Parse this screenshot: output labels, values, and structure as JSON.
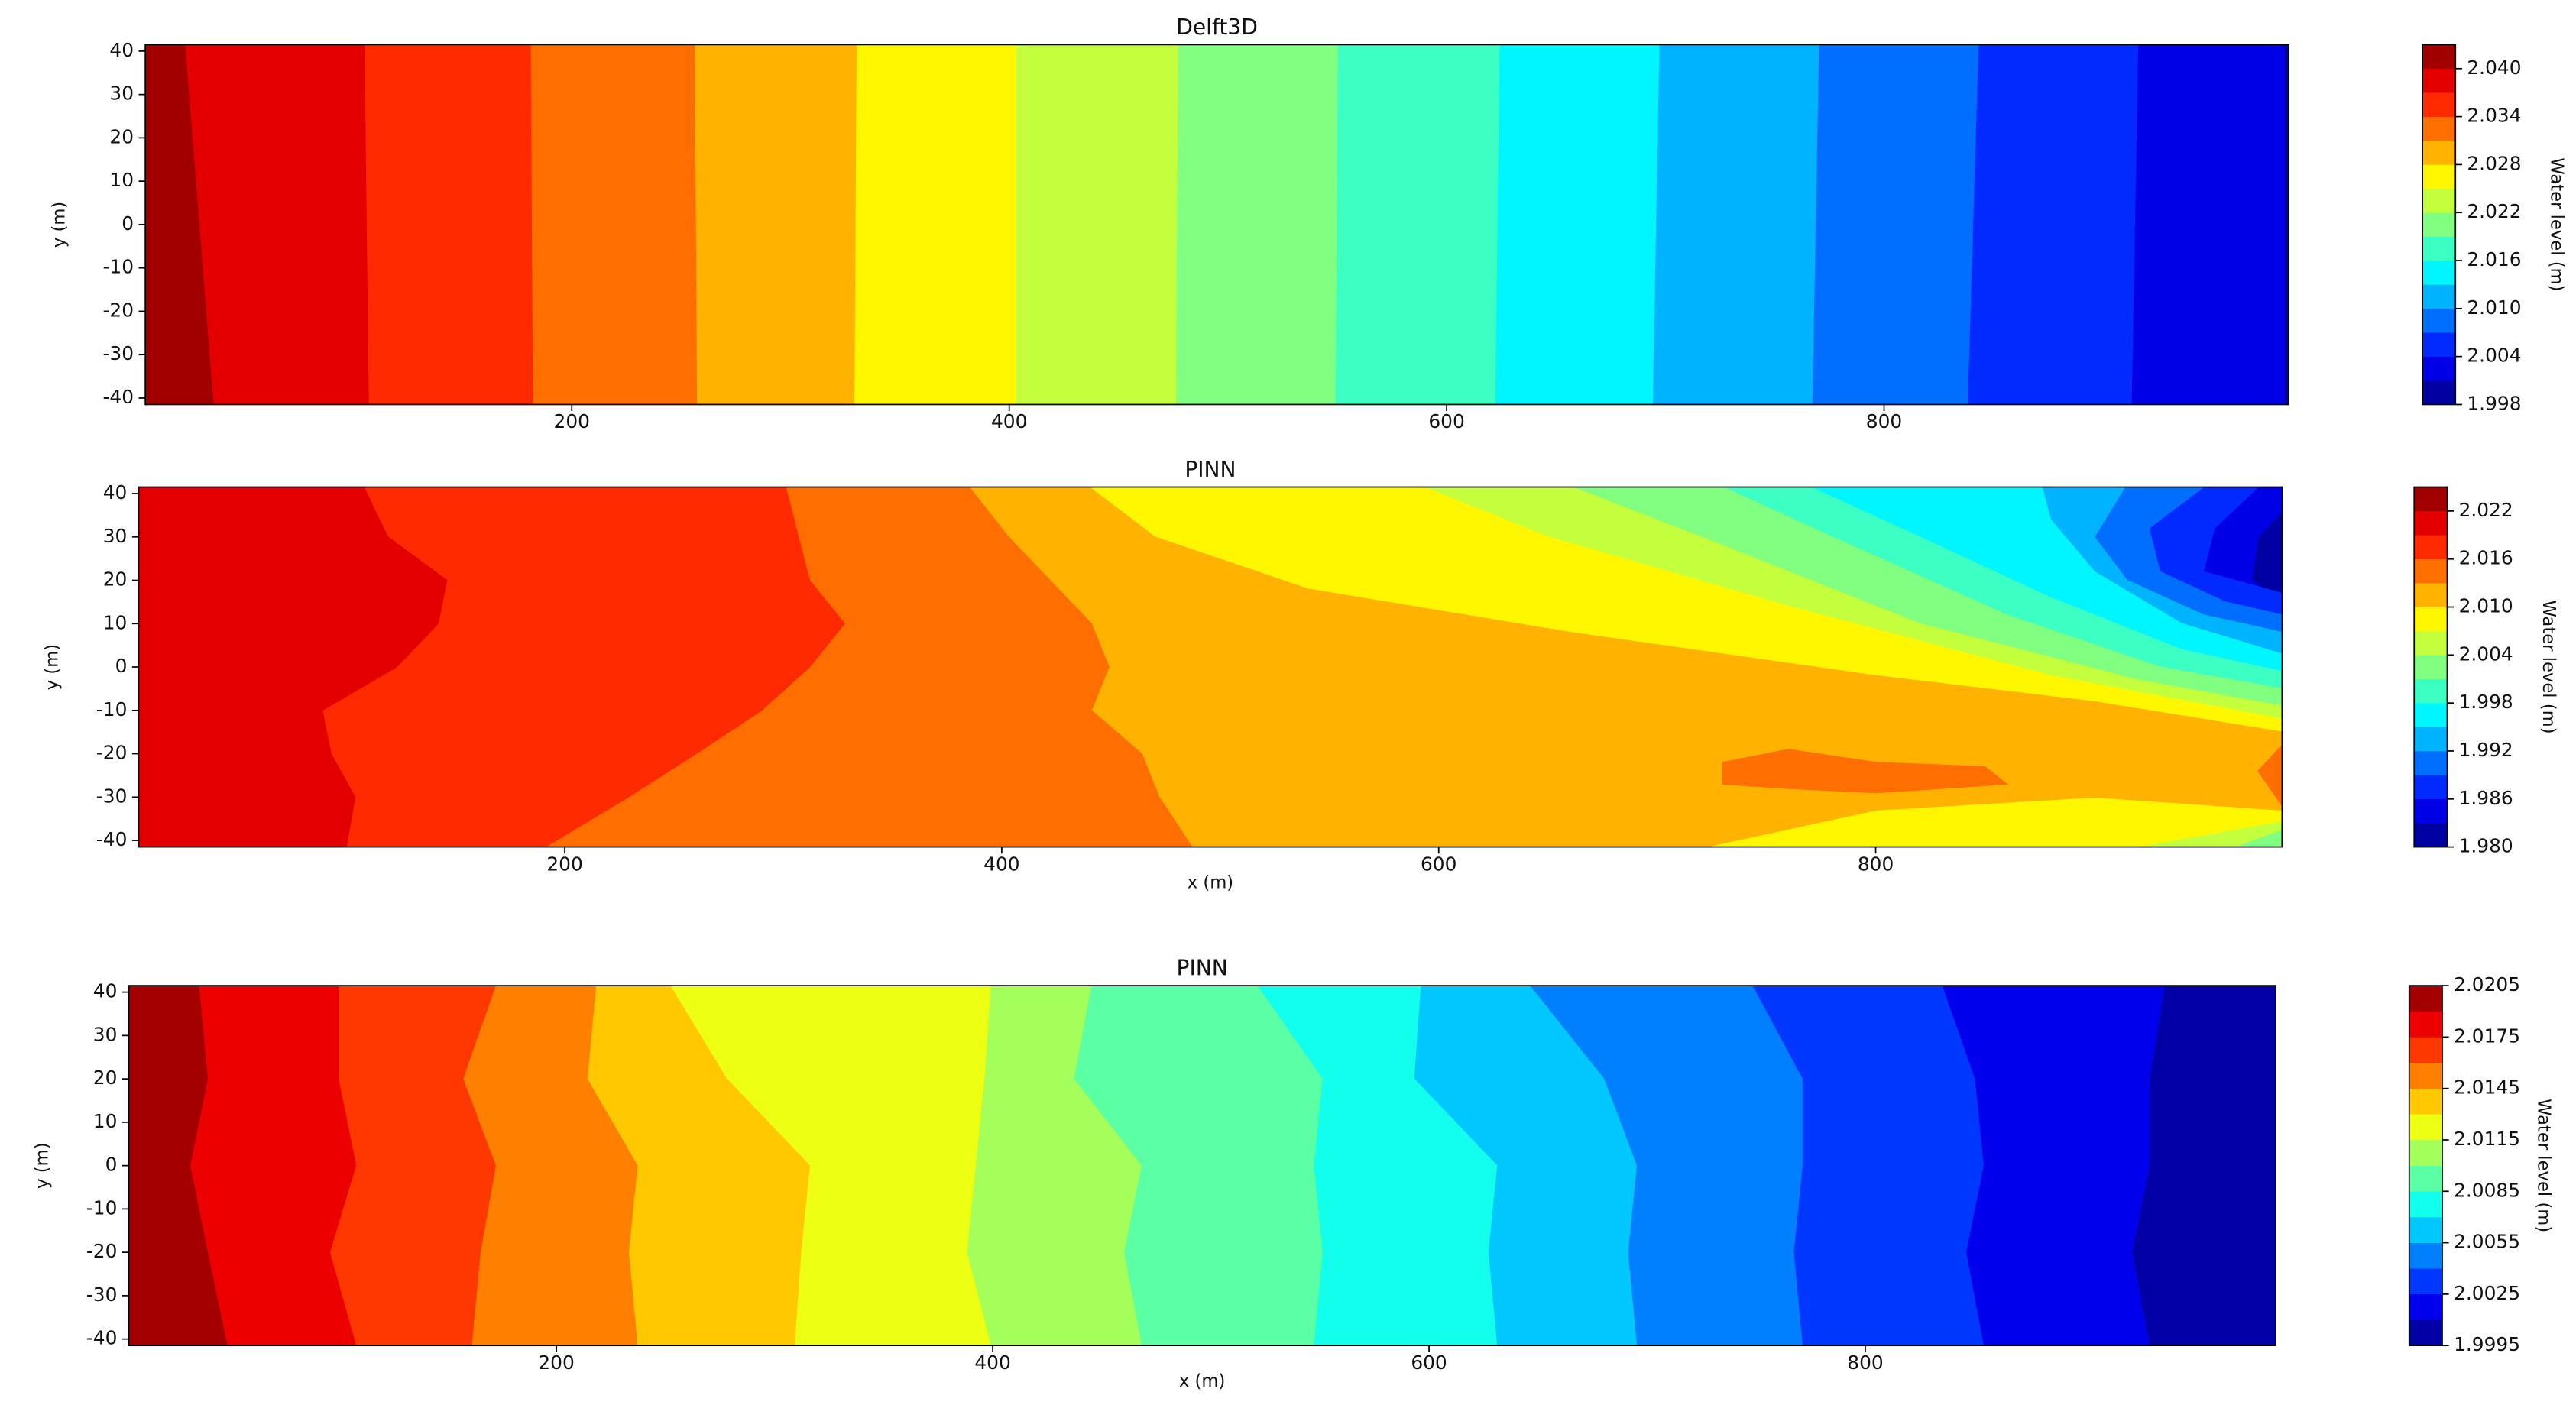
{
  "chart_data": [
    {
      "type": "contour",
      "title": "Delft3D",
      "ylabel": "y (m)",
      "colorbar_label": "Water level (m)",
      "colormap": "jet",
      "xlim": [
        5,
        985
      ],
      "ylim": [
        -41.5,
        41.5
      ],
      "xticks": [
        200,
        400,
        600,
        800
      ],
      "yticks": [
        -40,
        -30,
        -20,
        -10,
        0,
        10,
        20,
        30,
        40
      ],
      "levels": [
        1.998,
        2.001,
        2.004,
        2.007,
        2.01,
        2.013,
        2.016,
        2.019,
        2.022,
        2.025,
        2.028,
        2.031,
        2.034,
        2.037,
        2.04,
        2.043
      ],
      "cbar_ticks": [
        1.998,
        2.004,
        {
          "value": 2.01,
          "label": "2.010"
        },
        2.016,
        2.022,
        2.028,
        2.034,
        {
          "value": 2.04,
          "label": "2.040"
        }
      ],
      "regions": [
        {
          "level": 1.998,
          "x": [
            5,
            985,
            985,
            5
          ],
          "y": [
            41.5,
            41.5,
            -41.5,
            -41.5
          ]
        },
        {
          "level": 2.001,
          "x": [
            5,
            983,
            983,
            5
          ],
          "y": [
            41.5,
            41.5,
            -41.5,
            -41.5
          ]
        },
        {
          "level": 2.004,
          "x": [
            5,
            916,
            913,
            5
          ],
          "y": [
            41.5,
            41.5,
            -41.5,
            -41.5
          ]
        },
        {
          "level": 2.007,
          "x": [
            5,
            843,
            838,
            5
          ],
          "y": [
            41.5,
            41.5,
            -41.5,
            -41.5
          ]
        },
        {
          "level": 2.01,
          "x": [
            5,
            770,
            767,
            5
          ],
          "y": [
            41.5,
            41.5,
            -41.5,
            -41.5
          ]
        },
        {
          "level": 2.013,
          "x": [
            5,
            697,
            694,
            5
          ],
          "y": [
            41.5,
            41.5,
            -41.5,
            -41.5
          ]
        },
        {
          "level": 2.016,
          "x": [
            5,
            624,
            622,
            5
          ],
          "y": [
            41.5,
            41.5,
            -41.5,
            -41.5
          ]
        },
        {
          "level": 2.019,
          "x": [
            5,
            550,
            549,
            5
          ],
          "y": [
            41.5,
            41.5,
            -41.5,
            -41.5
          ]
        },
        {
          "level": 2.022,
          "x": [
            5,
            477,
            476,
            5
          ],
          "y": [
            41.5,
            41.5,
            -41.5,
            -41.5
          ]
        },
        {
          "level": 2.025,
          "x": [
            5,
            403,
            403,
            5
          ],
          "y": [
            41.5,
            41.5,
            -41.5,
            -41.5
          ]
        },
        {
          "level": 2.028,
          "x": [
            5,
            330,
            329,
            5
          ],
          "y": [
            41.5,
            41.5,
            -41.5,
            -41.5
          ]
        },
        {
          "level": 2.031,
          "x": [
            5,
            256,
            257,
            5
          ],
          "y": [
            41.5,
            41.5,
            -41.5,
            -41.5
          ]
        },
        {
          "level": 2.034,
          "x": [
            5,
            181,
            182,
            5
          ],
          "y": [
            41.5,
            41.5,
            -41.5,
            -41.5
          ]
        },
        {
          "level": 2.037,
          "x": [
            5,
            105,
            107,
            5
          ],
          "y": [
            41.5,
            41.5,
            -41.5,
            -41.5
          ]
        },
        {
          "level": 2.04,
          "x": [
            5,
            23,
            36,
            5
          ],
          "y": [
            41.5,
            41.5,
            -41.5,
            -41.5
          ]
        }
      ]
    },
    {
      "type": "contour",
      "title": "PINN",
      "xlabel": "x (m)",
      "ylabel": "y (m)",
      "colorbar_label": "Water level (m)",
      "colormap": "jet",
      "xlim": [
        5,
        986
      ],
      "ylim": [
        -41.5,
        41.5
      ],
      "xticks": [
        200,
        400,
        600,
        800
      ],
      "yticks": [
        -40,
        -30,
        -20,
        -10,
        0,
        10,
        20,
        30,
        40
      ],
      "levels": [
        1.98,
        1.983,
        1.986,
        1.989,
        1.992,
        1.995,
        1.998,
        2.001,
        2.004,
        2.007,
        2.01,
        2.013,
        2.016,
        2.019,
        2.022,
        2.025
      ],
      "cbar_ticks": [
        {
          "value": 1.98,
          "label": "1.980"
        },
        1.986,
        1.992,
        1.998,
        2.004,
        {
          "value": 2.01,
          "label": "2.010"
        },
        2.016,
        2.022
      ],
      "regions": [
        {
          "level": 1.98,
          "x": [
            5,
            986,
            986,
            5
          ],
          "y": [
            41.5,
            41.5,
            -41.5,
            -41.5
          ]
        },
        {
          "level": 1.983,
          "x": [
            5,
            986,
            986,
            975,
            972,
            986,
            986,
            5
          ],
          "y": [
            41.5,
            41.5,
            36,
            30,
            20,
            15,
            -41.5,
            -41.5
          ]
        },
        {
          "level": 1.986,
          "x": [
            5,
            975,
            955,
            950,
            986,
            986,
            5
          ],
          "y": [
            41.5,
            41.5,
            32,
            22,
            17,
            -41.5,
            -41.5
          ]
        },
        {
          "level": 1.989,
          "x": [
            5,
            950,
            925,
            930,
            960,
            986,
            986,
            5
          ],
          "y": [
            41.5,
            41.5,
            32,
            22,
            15,
            12,
            -41.5,
            -41.5
          ]
        },
        {
          "level": 1.992,
          "x": [
            5,
            914,
            900,
            915,
            950,
            986,
            986,
            5
          ],
          "y": [
            41.5,
            41.5,
            30,
            20,
            12,
            8,
            -41.5,
            -41.5
          ]
        },
        {
          "level": 1.995,
          "x": [
            5,
            876,
            880,
            900,
            940,
            986,
            986,
            5
          ],
          "y": [
            41.5,
            41.5,
            34,
            22,
            10,
            3,
            -41.5,
            -41.5
          ]
        },
        {
          "level": 1.998,
          "x": [
            5,
            770,
            820,
            880,
            940,
            986,
            986,
            5
          ],
          "y": [
            41.5,
            41.5,
            30,
            16,
            4,
            -1,
            -41.5,
            -41.5
          ]
        },
        {
          "level": 2.001,
          "x": [
            5,
            730,
            780,
            860,
            930,
            986,
            986,
            5
          ],
          "y": [
            41.5,
            41.5,
            30,
            12,
            0,
            -5,
            -41.5,
            -41.5
          ]
        },
        {
          "level": 2.004,
          "x": [
            5,
            661,
            720,
            820,
            920,
            986,
            986,
            964,
            5
          ],
          "y": [
            41.5,
            41.5,
            30,
            10,
            -3,
            -9,
            -37.4,
            -41.5,
            -41.5
          ]
        },
        {
          "level": 2.007,
          "x": [
            5,
            593,
            650,
            760,
            880,
            986,
            986,
            919,
            5
          ],
          "y": [
            41.5,
            41.5,
            30,
            14,
            -2,
            -12,
            -35.5,
            -41.5,
            -41.5
          ]
        },
        {
          "level": 2.01,
          "x": [
            5,
            440,
            470,
            540,
            660,
            800,
            900,
            986,
            986,
            900,
            800,
            722,
            5
          ],
          "y": [
            41.5,
            41.5,
            30,
            18,
            8,
            -2,
            -8,
            -15,
            -33,
            -30,
            -33,
            -41.5,
            -41.5
          ]
        },
        {
          "level": 2.013,
          "x": [
            5,
            385,
            403,
            441,
            449,
            441,
            464,
            472,
            487,
            5
          ],
          "y": [
            41.5,
            41.5,
            30,
            10,
            0,
            -10,
            -20,
            -30,
            -41.5,
            -41.5
          ]
        },
        {
          "level": 2.013,
          "x": [
            730,
            760,
            800,
            850,
            860,
            800,
            760,
            730
          ],
          "y": [
            -22,
            -19,
            -22,
            -23,
            -27,
            -29,
            -28,
            -27
          ]
        },
        {
          "level": 2.013,
          "x": [
            986,
            975,
            986
          ],
          "y": [
            -18,
            -24,
            -32
          ]
        },
        {
          "level": 2.016,
          "x": [
            5,
            301,
            312,
            328,
            312,
            290,
            260,
            229,
            191,
            5
          ],
          "y": [
            41.5,
            41.5,
            20,
            10,
            0,
            -10,
            -20,
            -30,
            -41.5,
            -41.5
          ]
        },
        {
          "level": 2.019,
          "x": [
            5,
            108,
            119,
            146,
            142,
            123,
            89,
            93,
            104,
            100,
            5
          ],
          "y": [
            41.5,
            41.5,
            30,
            20,
            10,
            0,
            -10,
            -20,
            -30,
            -41.5,
            -41.5
          ]
        }
      ]
    },
    {
      "type": "contour",
      "title": "PINN",
      "xlabel": "x (m)",
      "ylabel": "y (m)",
      "colorbar_label": "Water level (m)",
      "colormap": "jet",
      "xlim": [
        4,
        988
      ],
      "ylim": [
        -41.5,
        41.5
      ],
      "xticks": [
        200,
        400,
        600,
        800
      ],
      "yticks": [
        -40,
        -30,
        -20,
        -10,
        0,
        10,
        20,
        30,
        40
      ],
      "levels": [
        1.9995,
        2.001,
        2.0025,
        2.004,
        2.0055,
        2.007,
        2.0085,
        2.01,
        2.0115,
        2.013,
        2.0145,
        2.016,
        2.0175,
        2.019,
        2.0205
      ],
      "cbar_ticks": [
        1.9995,
        2.0025,
        2.0055,
        2.0085,
        2.0115,
        2.0145,
        2.0175,
        2.0205
      ],
      "regions": [
        {
          "level": 1.9995,
          "x": [
            4,
            988,
            988,
            4
          ],
          "y": [
            41.5,
            41.5,
            -41.5,
            -41.5
          ]
        },
        {
          "level": 2.001,
          "x": [
            4,
            937,
            930,
            930,
            922,
            930,
            4
          ],
          "y": [
            41.5,
            41.5,
            20,
            0,
            -20,
            -41.5,
            -41.5
          ]
        },
        {
          "level": 2.0025,
          "x": [
            4,
            835,
            850,
            854,
            846,
            854,
            4
          ],
          "y": [
            41.5,
            41.5,
            20,
            0,
            -20,
            -41.5,
            -41.5
          ]
        },
        {
          "level": 2.004,
          "x": [
            4,
            748,
            771,
            771,
            767,
            771,
            4
          ],
          "y": [
            41.5,
            41.5,
            20,
            0,
            -20,
            -41.5,
            -41.5
          ]
        },
        {
          "level": 2.0055,
          "x": [
            4,
            646,
            680,
            695,
            691,
            695,
            4
          ],
          "y": [
            41.5,
            41.5,
            20,
            0,
            -20,
            -41.5,
            -41.5
          ]
        },
        {
          "level": 2.007,
          "x": [
            4,
            596,
            593,
            631,
            627,
            631,
            4
          ],
          "y": [
            41.5,
            41.5,
            20,
            0,
            -20,
            -41.5,
            -41.5
          ]
        },
        {
          "level": 2.0085,
          "x": [
            4,
            521,
            551,
            547,
            551,
            547,
            4
          ],
          "y": [
            41.5,
            41.5,
            20,
            0,
            -20,
            -41.5,
            -41.5
          ]
        },
        {
          "level": 2.01,
          "x": [
            4,
            445,
            437,
            468,
            460,
            468,
            4
          ],
          "y": [
            41.5,
            41.5,
            20,
            0,
            -20,
            -41.5,
            -41.5
          ]
        },
        {
          "level": 2.0115,
          "x": [
            4,
            399,
            396,
            392,
            388,
            399,
            4
          ],
          "y": [
            41.5,
            41.5,
            20,
            0,
            -20,
            -41.5,
            -41.5
          ]
        },
        {
          "level": 2.013,
          "x": [
            4,
            252,
            278,
            316,
            312,
            309,
            4
          ],
          "y": [
            41.5,
            41.5,
            20,
            0,
            -20,
            -41.5,
            -41.5
          ]
        },
        {
          "level": 2.0145,
          "x": [
            4,
            218,
            214,
            237,
            233,
            237,
            4
          ],
          "y": [
            41.5,
            41.5,
            20,
            0,
            -20,
            -41.5,
            -41.5
          ]
        },
        {
          "level": 2.016,
          "x": [
            4,
            172,
            157,
            172,
            165,
            161,
            4
          ],
          "y": [
            41.5,
            41.5,
            20,
            0,
            -20,
            -41.5,
            -41.5
          ]
        },
        {
          "level": 2.0175,
          "x": [
            4,
            100,
            100,
            108,
            96,
            108,
            4
          ],
          "y": [
            41.5,
            41.5,
            20,
            0,
            -20,
            -41.5,
            -41.5
          ]
        },
        {
          "level": 2.019,
          "x": [
            4,
            36,
            40,
            32,
            40,
            49,
            4
          ],
          "y": [
            41.5,
            41.5,
            20,
            0,
            -20,
            -41.5,
            -41.5
          ]
        }
      ]
    }
  ]
}
